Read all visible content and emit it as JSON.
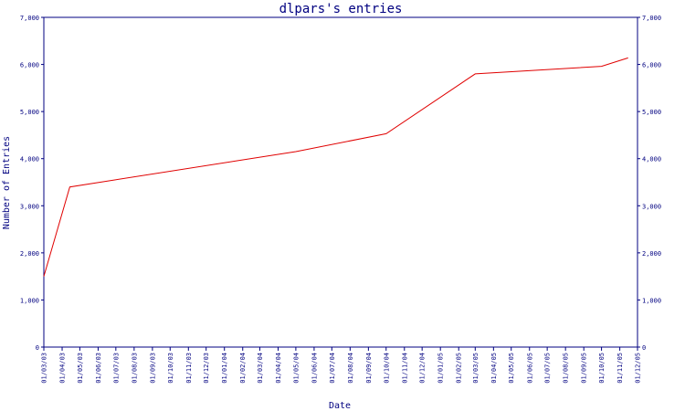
{
  "chart_data": {
    "type": "line",
    "title": "dlpars's entries",
    "xlabel": "Date",
    "ylabel": "Number of Entries",
    "ylim": [
      0,
      7000
    ],
    "yticks": [
      0,
      1000,
      2000,
      3000,
      4000,
      5000,
      6000,
      7000
    ],
    "ytick_labels": [
      "0",
      "1,000",
      "2,000",
      "3,000",
      "4,000",
      "5,000",
      "6,000",
      "7,000"
    ],
    "xticks": [
      "01/03/03",
      "01/04/03",
      "01/05/03",
      "01/06/03",
      "01/07/03",
      "01/08/03",
      "01/09/03",
      "01/10/03",
      "01/11/03",
      "01/12/03",
      "01/01/04",
      "01/02/04",
      "01/03/04",
      "01/04/04",
      "01/05/04",
      "01/06/04",
      "01/07/04",
      "01/08/04",
      "01/09/04",
      "01/10/04",
      "01/11/04",
      "01/12/04",
      "01/01/05",
      "01/02/05",
      "01/03/05",
      "01/04/05",
      "01/05/05",
      "01/06/05",
      "01/07/05",
      "01/08/05",
      "01/09/05",
      "01/10/05",
      "01/11/05",
      "01/12/05"
    ],
    "grid": false,
    "series": [
      {
        "color": "#e00000",
        "points": [
          {
            "x": "01/03/03",
            "y": 1500
          },
          {
            "x": "2003-04-14",
            "y": 3400
          },
          {
            "x": "01/05/04",
            "y": 4150
          },
          {
            "x": "01/10/04",
            "y": 4530
          },
          {
            "x": "01/03/05",
            "y": 5800
          },
          {
            "x": "01/10/05",
            "y": 5960
          },
          {
            "x": "2005-11-15",
            "y": 6140
          }
        ]
      }
    ]
  }
}
